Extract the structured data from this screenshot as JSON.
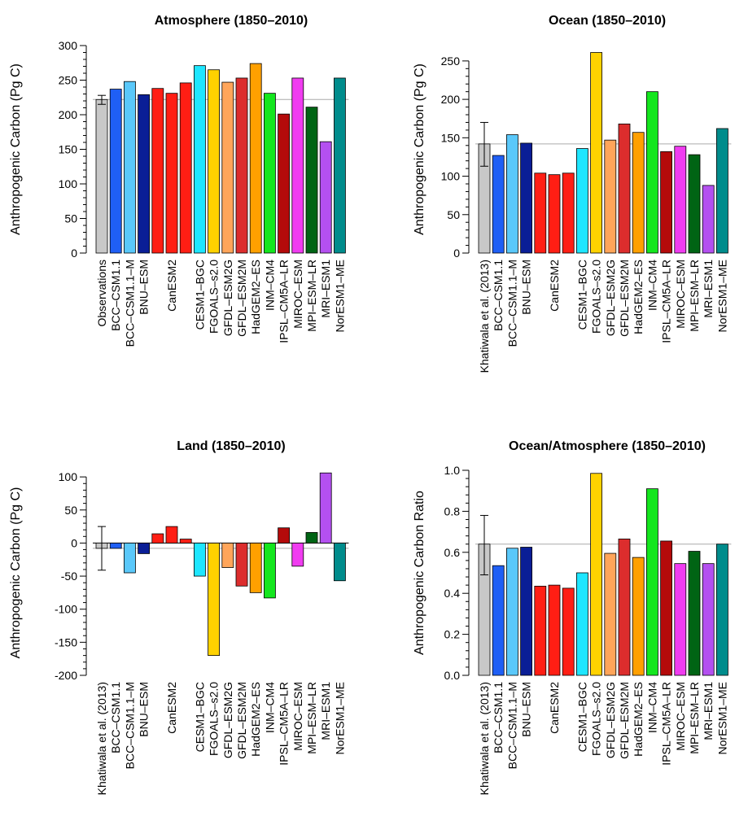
{
  "chart_data": [
    {
      "type": "bar",
      "title": "Atmosphere (1850–2010)",
      "ylabel": "Anthropogenic Carbon (Pg C)",
      "ylim": [
        0,
        300
      ],
      "yticks": [
        0,
        50,
        100,
        150,
        200,
        250,
        300
      ],
      "reference_line": 222,
      "categories": [
        "Observations",
        "BCC–CSM1.1",
        "BCC–CSM1.1–M",
        "BNU–ESM",
        "",
        "CanESM2",
        "",
        "CESM1–BGC",
        "FGOALS–s2.0",
        "GFDL–ESM2G",
        "GFDL–ESM2M",
        "HadGEM2–ES",
        "INM–CM4",
        "IPSL–CM5A–LR",
        "MIROC–ESM",
        "MPI–ESM–LR",
        "MRI–ESM1",
        "NorESM1–ME"
      ],
      "values": [
        222,
        237,
        248,
        229,
        238,
        231,
        246,
        271,
        265,
        247,
        253,
        274,
        231,
        201,
        253,
        211,
        161,
        253
      ],
      "colors": [
        "#c8c8c8",
        "#1f5ff5",
        "#5ac8fa",
        "#0a1e96",
        "#ff1e14",
        "#ff1e14",
        "#ff1e14",
        "#1ee6ff",
        "#ffd200",
        "#ffa55a",
        "#dc2d2d",
        "#ffa000",
        "#14e61e",
        "#b40a0a",
        "#f03cf0",
        "#006414",
        "#b450f0",
        "#008c8c"
      ],
      "error_bars": [
        {
          "index": 0,
          "low": 215,
          "high": 228
        }
      ]
    },
    {
      "type": "bar",
      "title": "Ocean (1850–2010)",
      "ylabel": "Anthropogenic Carbon (Pg C)",
      "ylim": [
        0,
        270
      ],
      "yticks": [
        0,
        50,
        100,
        150,
        200,
        250
      ],
      "reference_line": 142,
      "categories": [
        "Khatiwala et al. (2013)",
        "BCC–CSM1.1",
        "BCC–CSM1.1–M",
        "BNU–ESM",
        "",
        "CanESM2",
        "",
        "CESM1–BGC",
        "FGOALS–s2.0",
        "GFDL–ESM2G",
        "GFDL–ESM2M",
        "HadGEM2–ES",
        "INM–CM4",
        "IPSL–CM5A–LR",
        "MIROC–ESM",
        "MPI–ESM–LR",
        "MRI–ESM1",
        "NorESM1–ME"
      ],
      "values": [
        142,
        127,
        154,
        143,
        104,
        102,
        104,
        136,
        261,
        147,
        168,
        157,
        210,
        132,
        139,
        128,
        88,
        162
      ],
      "colors": [
        "#c8c8c8",
        "#1f5ff5",
        "#5ac8fa",
        "#0a1e96",
        "#ff1e14",
        "#ff1e14",
        "#ff1e14",
        "#1ee6ff",
        "#ffd200",
        "#ffa55a",
        "#dc2d2d",
        "#ffa000",
        "#14e61e",
        "#b40a0a",
        "#f03cf0",
        "#006414",
        "#b450f0",
        "#008c8c"
      ],
      "error_bars": [
        {
          "index": 0,
          "low": 113,
          "high": 170
        }
      ]
    },
    {
      "type": "bar",
      "title": "Land (1850–2010)",
      "ylabel": "Anthropogenic Carbon (Pg C)",
      "ylim": [
        -200,
        110
      ],
      "yticks": [
        -200,
        -150,
        -100,
        -50,
        0,
        50,
        100
      ],
      "reference_line": -8,
      "zero_line": true,
      "categories": [
        "Khatiwala et al. (2013)",
        "BCC–CSM1.1",
        "BCC–CSM1.1–M",
        "BNU–ESM",
        "",
        "CanESM2",
        "",
        "CESM1–BGC",
        "FGOALS–s2.0",
        "GFDL–ESM2G",
        "GFDL–ESM2M",
        "HadGEM2–ES",
        "INM–CM4",
        "IPSL–CM5A–LR",
        "MIROC–ESM",
        "MPI–ESM–LR",
        "MRI–ESM1",
        "NorESM1–ME"
      ],
      "values": [
        -8,
        -8,
        -45,
        -16,
        14,
        25,
        6,
        -50,
        -170,
        -37,
        -65,
        -75,
        -83,
        23,
        -35,
        16,
        106,
        -57
      ],
      "colors": [
        "#c8c8c8",
        "#1f5ff5",
        "#5ac8fa",
        "#0a1e96",
        "#ff1e14",
        "#ff1e14",
        "#ff1e14",
        "#1ee6ff",
        "#ffd200",
        "#ffa55a",
        "#dc2d2d",
        "#ffa000",
        "#14e61e",
        "#b40a0a",
        "#f03cf0",
        "#006414",
        "#b450f0",
        "#008c8c"
      ],
      "error_bars": [
        {
          "index": 0,
          "low": -41,
          "high": 25
        }
      ]
    },
    {
      "type": "bar",
      "title": "Ocean/Atmosphere (1850–2010)",
      "ylabel": "Anthropogenic Carbon Ratio",
      "ylim": [
        0,
        1.0
      ],
      "yticks": [
        0.0,
        0.2,
        0.4,
        0.6,
        0.8,
        1.0
      ],
      "tick_decimals": 1,
      "reference_line": 0.64,
      "categories": [
        "Khatiwala et al. (2013)",
        "BCC–CSM1.1",
        "BCC–CSM1.1–M",
        "BNU–ESM",
        "",
        "CanESM2",
        "",
        "CESM1–BGC",
        "FGOALS–s2.0",
        "GFDL–ESM2G",
        "GFDL–ESM2M",
        "HadGEM2–ES",
        "INM–CM4",
        "IPSL–CM5A–LR",
        "MIROC–ESM",
        "MPI–ESM–LR",
        "MRI–ESM1",
        "NorESM1–ME"
      ],
      "values": [
        0.64,
        0.535,
        0.62,
        0.625,
        0.435,
        0.44,
        0.425,
        0.5,
        0.985,
        0.595,
        0.665,
        0.575,
        0.91,
        0.655,
        0.545,
        0.605,
        0.545,
        0.64
      ],
      "colors": [
        "#c8c8c8",
        "#1f5ff5",
        "#5ac8fa",
        "#0a1e96",
        "#ff1e14",
        "#ff1e14",
        "#ff1e14",
        "#1ee6ff",
        "#ffd200",
        "#ffa55a",
        "#dc2d2d",
        "#ffa000",
        "#14e61e",
        "#b40a0a",
        "#f03cf0",
        "#006414",
        "#b450f0",
        "#008c8c"
      ],
      "error_bars": [
        {
          "index": 0,
          "low": 0.49,
          "high": 0.78
        }
      ]
    }
  ]
}
